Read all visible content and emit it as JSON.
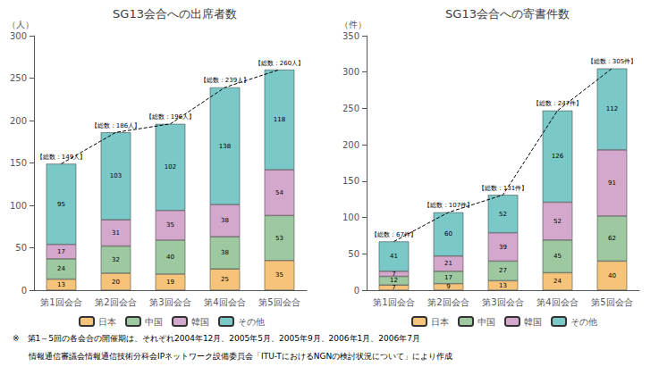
{
  "chart_data": [
    {
      "type": "bar",
      "stacked": true,
      "data_labels": true,
      "grid": false,
      "legend": "bottom",
      "title": "SG13会合への出席者数",
      "y_label": "（人）",
      "categories": [
        "第1回会合",
        "第2回会合",
        "第3回会合",
        "第4回会合",
        "第5回会合"
      ],
      "series": [
        {
          "name": "日本",
          "color": "#F5C47A",
          "values": [
            13,
            20,
            19,
            25,
            35
          ]
        },
        {
          "name": "中国",
          "color": "#9DC8A0",
          "values": [
            24,
            32,
            40,
            38,
            53
          ]
        },
        {
          "name": "韓国",
          "color": "#D4A8CC",
          "values": [
            17,
            31,
            35,
            38,
            54
          ]
        },
        {
          "name": "その他",
          "color": "#7BC8C8",
          "values": [
            95,
            103,
            102,
            138,
            118
          ]
        }
      ],
      "annotations": [
        {
          "x": "第1回会合",
          "y": 149,
          "text": "【総数：149人】"
        },
        {
          "x": "第2回会合",
          "y": 186,
          "text": "【総数：186人】"
        },
        {
          "x": "第3回会合",
          "y": 196,
          "text": "【総数：196人】"
        },
        {
          "x": "第4回会合",
          "y": 239,
          "text": "【総数：239人】"
        },
        {
          "x": "第5回会合",
          "y": 260,
          "text": "【総数：260人】"
        }
      ],
      "ylim": [
        0,
        300
      ],
      "yticks": [
        0,
        50,
        100,
        150,
        200,
        250,
        300
      ]
    },
    {
      "type": "bar",
      "stacked": true,
      "data_labels": true,
      "grid": false,
      "legend": "bottom",
      "title": "SG13会合への寄書件数",
      "y_label": "（件）",
      "categories": [
        "第1回会合",
        "第2回会合",
        "第3回会合",
        "第4回会合",
        "第5回会合"
      ],
      "series": [
        {
          "name": "日本",
          "color": "#F5C47A",
          "values": [
            7,
            9,
            13,
            24,
            40
          ]
        },
        {
          "name": "中国",
          "color": "#9DC8A0",
          "values": [
            12,
            17,
            27,
            45,
            62
          ]
        },
        {
          "name": "韓国",
          "color": "#D4A8CC",
          "values": [
            7,
            21,
            39,
            52,
            91
          ]
        },
        {
          "name": "その他",
          "color": "#7BC8C8",
          "values": [
            41,
            60,
            52,
            126,
            112
          ]
        }
      ],
      "annotations": [
        {
          "x": "第1回会合",
          "y": 67,
          "text": "【総数：67件】"
        },
        {
          "x": "第2回会合",
          "y": 107,
          "text": "【総数：107件】"
        },
        {
          "x": "第3回会合",
          "y": 131,
          "text": "【総数：131件】"
        },
        {
          "x": "第4回会合",
          "y": 247,
          "text": "【総数：247件】"
        },
        {
          "x": "第5回会合",
          "y": 305,
          "text": "【総数：305件】"
        }
      ],
      "ylim": [
        0,
        350
      ],
      "yticks": [
        0,
        50,
        100,
        150,
        200,
        250,
        300,
        350
      ]
    }
  ],
  "footnotes": [
    "※　第1～5回の各会合の開催期は、それぞれ2004年12月、2005年5月、2005年9月、2006年1月、2006年7月",
    "　　情報通信審議会情報通信技術分科会IPネットワーク設備委員会「ITU-TにおけるNGNの検討状況について」により作成"
  ]
}
